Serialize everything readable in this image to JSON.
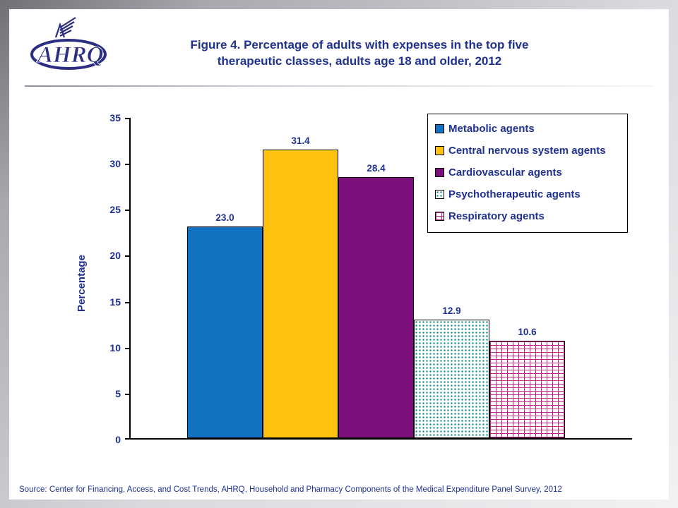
{
  "accent": "#1F3191",
  "header": {
    "logo_text": "AHRQ",
    "title_line1": "Figure 4. Percentage of adults with expenses in the top five",
    "title_line2": "therapeutic classes, adults age 18 and older, 2012"
  },
  "footer": {
    "source": "Source: Center for Financing, Access, and Cost Trends, AHRQ, Household and Pharmacy Components of the Medical Expenditure Panel Survey, 2012"
  },
  "chart_data": {
    "type": "bar",
    "title": "Figure 4. Percentage of adults with expenses in the top five therapeutic classes, adults age 18 and older, 2012",
    "categories": [
      "Metabolic agents",
      "Central nervous system agents",
      "Cardiovascular agents",
      "Psychotherapeutic agents",
      "Respiratory agents"
    ],
    "values": [
      23.0,
      31.4,
      28.4,
      12.9,
      10.6
    ],
    "value_labels": [
      "23.0",
      "31.4",
      "28.4",
      "12.9",
      "10.6"
    ],
    "xlabel": "",
    "ylabel": "Percentage",
    "ylim": [
      0,
      35
    ],
    "yticks": [
      0,
      5,
      10,
      15,
      20,
      25,
      30,
      35
    ],
    "grid": false,
    "legend_position": "top-right",
    "bar_styles": [
      {
        "fill": "#1272C2",
        "pattern": "solid"
      },
      {
        "fill": "#FFC20E",
        "pattern": "solid"
      },
      {
        "fill": "#7B0F7B",
        "pattern": "solid"
      },
      {
        "fill": "#0E8C8C",
        "pattern": "dots"
      },
      {
        "fill": "#C2218C",
        "pattern": "brick"
      }
    ]
  }
}
